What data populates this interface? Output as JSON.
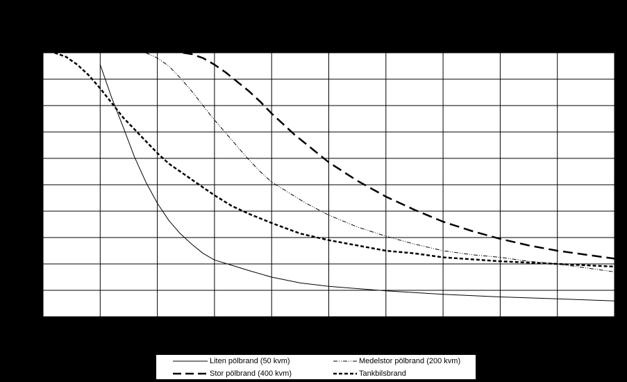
{
  "chart_data": {
    "type": "line",
    "title": "",
    "xlabel": "",
    "ylabel": "",
    "xlim": [
      0,
      100
    ],
    "ylim": [
      0,
      100
    ],
    "x_gridlines": [
      10,
      20,
      30,
      40,
      50,
      60,
      70,
      80,
      90
    ],
    "y_gridlines": [
      10,
      20,
      30,
      40,
      50,
      60,
      70,
      80,
      90
    ],
    "grid": true,
    "legend_position": "bottom",
    "series": [
      {
        "name": "Liten pölbrand (50 kvm)",
        "style": "solid",
        "color": "#000000",
        "x": [
          10,
          12,
          14,
          16,
          18,
          20,
          22,
          24,
          26,
          28,
          30,
          33,
          36,
          40,
          45,
          50,
          60,
          70,
          80,
          90,
          100
        ],
        "y": [
          95.5,
          83,
          72,
          60.5,
          51,
          43,
          36.5,
          31.5,
          27.5,
          24,
          21.5,
          19.5,
          17.5,
          15,
          12.8,
          11.5,
          9.8,
          8.5,
          7.5,
          6.8,
          6
        ]
      },
      {
        "name": "Medelstor pölbrand (200 kvm)",
        "style": "dash-dot-dot",
        "color": "#000000",
        "x": [
          18,
          20,
          22,
          24,
          26,
          28,
          30,
          32,
          34,
          36,
          38,
          40,
          43,
          46,
          50,
          55,
          60,
          65,
          70,
          75,
          80,
          85,
          90,
          95,
          100
        ],
        "y": [
          100,
          98,
          95,
          90.5,
          85.5,
          80,
          74.5,
          69.5,
          64.5,
          59.5,
          55,
          51,
          47,
          43,
          38.5,
          34,
          30.5,
          27.5,
          25,
          23.5,
          22.5,
          21,
          20,
          18.5,
          17
        ]
      },
      {
        "name": "Stor pölbrand (400 kvm)",
        "style": "long-dash",
        "color": "#000000",
        "x": [
          24.5,
          26,
          28,
          30,
          32,
          34,
          36,
          38,
          40,
          42,
          44,
          46,
          48,
          50,
          55,
          60,
          65,
          70,
          75,
          80,
          85,
          90,
          95,
          100
        ],
        "y": [
          100,
          99.5,
          98,
          95.5,
          92.5,
          89,
          85.5,
          81.5,
          77,
          73,
          69,
          65.5,
          62,
          58.5,
          51.5,
          45.5,
          40.5,
          36,
          32.5,
          29.5,
          27,
          25,
          23.5,
          22
        ]
      },
      {
        "name": "Tankbilsbrand",
        "style": "short-dash",
        "color": "#000000",
        "x": [
          2,
          4,
          6,
          8,
          10,
          12,
          14,
          16,
          18,
          20,
          22,
          25,
          28,
          30,
          33,
          36,
          40,
          45,
          50,
          55,
          60,
          65,
          70,
          80,
          90,
          100
        ],
        "y": [
          100,
          98.5,
          95.5,
          91.5,
          86.5,
          81,
          75.5,
          71,
          66.5,
          62,
          58,
          53.5,
          49,
          46,
          42,
          39,
          35.5,
          31.5,
          29,
          27,
          25,
          24,
          22.5,
          21,
          20,
          19
        ]
      }
    ]
  },
  "colors": {
    "background": "#000000",
    "plot_area": "#ffffff",
    "grid": "#000000",
    "line": "#000000"
  }
}
